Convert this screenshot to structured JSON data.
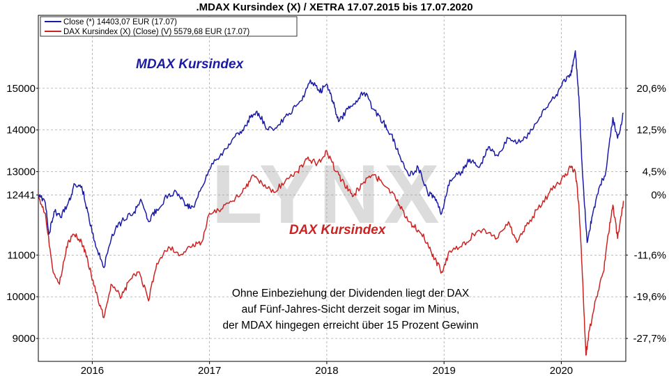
{
  "chart_data": {
    "type": "line",
    "title": ".MDAX Kursindex (X) / XETRA 17.07.2015 bis 17.07.2020",
    "legend": [
      {
        "label": "Close (*) 14403,07 EUR (17.07)",
        "color": "#1a1aa6"
      },
      {
        "label": "DAX Kursindex (X) (Close) (V) 5579,68 EUR (17.07)",
        "color": "#cc2222"
      }
    ],
    "legend_position": "top-left",
    "series_labels": {
      "mdax": "MDAX Kursindex",
      "dax": "DAX Kursindex"
    },
    "x_ticks": [
      "2016",
      "2017",
      "2018",
      "2019",
      "2020"
    ],
    "x_tick_values": [
      2016.0,
      2017.0,
      2018.0,
      2019.0,
      2020.0
    ],
    "xlim": [
      2015.54,
      2020.55
    ],
    "y_left_ticks": [
      {
        "label": "15000",
        "value": 15000
      },
      {
        "label": "14000",
        "value": 14000
      },
      {
        "label": "13000",
        "value": 13000
      },
      {
        "label": "12441",
        "value": 12441
      },
      {
        "label": "11000",
        "value": 11000
      },
      {
        "label": "10000",
        "value": 10000
      },
      {
        "label": "9000",
        "value": 9000
      }
    ],
    "y_right_ticks": [
      {
        "label": "20,6%",
        "value": 15000
      },
      {
        "label": "12,5%",
        "value": 14000
      },
      {
        "label": "4,5%",
        "value": 13000
      },
      {
        "label": "0%",
        "value": 12441
      },
      {
        "label": "-11,6%",
        "value": 11000
      },
      {
        "label": "-19,6%",
        "value": 10000
      },
      {
        "label": "-27,7%",
        "value": 9000
      }
    ],
    "ylim": [
      8450,
      16750
    ],
    "annotation": [
      "Ohne Einbeziehung der Dividenden liegt der DAX",
      "auf Fünf-Jahres-Sicht derzeit sogar im Minus,",
      "der MDAX hingegen erreicht über 15 Prozent Gewinn"
    ],
    "watermark": "LYNX",
    "series": [
      {
        "name": "MDAX",
        "color": "#1a1aa6",
        "points": [
          [
            2015.54,
            12441
          ],
          [
            2015.6,
            12250
          ],
          [
            2015.63,
            11500
          ],
          [
            2015.68,
            12050
          ],
          [
            2015.73,
            11900
          ],
          [
            2015.8,
            12300
          ],
          [
            2015.85,
            12700
          ],
          [
            2015.91,
            12650
          ],
          [
            2015.96,
            12050
          ],
          [
            2016.03,
            11200
          ],
          [
            2016.1,
            10700
          ],
          [
            2016.17,
            11500
          ],
          [
            2016.25,
            11800
          ],
          [
            2016.35,
            12000
          ],
          [
            2016.42,
            12300
          ],
          [
            2016.48,
            11800
          ],
          [
            2016.55,
            12100
          ],
          [
            2016.65,
            12450
          ],
          [
            2016.72,
            12500
          ],
          [
            2016.8,
            12200
          ],
          [
            2016.86,
            12150
          ],
          [
            2016.95,
            12700
          ],
          [
            2017.02,
            13200
          ],
          [
            2017.12,
            13500
          ],
          [
            2017.2,
            13800
          ],
          [
            2017.28,
            14000
          ],
          [
            2017.35,
            14300
          ],
          [
            2017.42,
            14400
          ],
          [
            2017.5,
            14000
          ],
          [
            2017.58,
            14100
          ],
          [
            2017.68,
            14400
          ],
          [
            2017.78,
            14700
          ],
          [
            2017.86,
            15200
          ],
          [
            2017.94,
            14900
          ],
          [
            2018.0,
            15100
          ],
          [
            2018.05,
            14700
          ],
          [
            2018.1,
            14200
          ],
          [
            2018.18,
            14500
          ],
          [
            2018.25,
            14700
          ],
          [
            2018.32,
            14900
          ],
          [
            2018.4,
            14500
          ],
          [
            2018.48,
            14200
          ],
          [
            2018.55,
            13900
          ],
          [
            2018.62,
            13400
          ],
          [
            2018.7,
            12900
          ],
          [
            2018.78,
            13100
          ],
          [
            2018.86,
            12500
          ],
          [
            2018.92,
            12400
          ],
          [
            2018.98,
            12000
          ],
          [
            2019.05,
            12800
          ],
          [
            2019.15,
            13000
          ],
          [
            2019.22,
            13300
          ],
          [
            2019.3,
            13100
          ],
          [
            2019.38,
            13600
          ],
          [
            2019.45,
            13400
          ],
          [
            2019.55,
            13800
          ],
          [
            2019.65,
            13700
          ],
          [
            2019.75,
            14000
          ],
          [
            2019.85,
            14500
          ],
          [
            2019.95,
            14800
          ],
          [
            2020.02,
            15200
          ],
          [
            2020.08,
            15300
          ],
          [
            2020.12,
            15900
          ],
          [
            2020.15,
            14800
          ],
          [
            2020.18,
            13000
          ],
          [
            2020.22,
            11300
          ],
          [
            2020.26,
            11900
          ],
          [
            2020.32,
            12600
          ],
          [
            2020.38,
            13000
          ],
          [
            2020.44,
            14300
          ],
          [
            2020.48,
            13800
          ],
          [
            2020.53,
            14403
          ]
        ]
      },
      {
        "name": "DAX",
        "color": "#cc2222",
        "points": [
          [
            2015.54,
            12441
          ],
          [
            2015.6,
            12000
          ],
          [
            2015.66,
            10700
          ],
          [
            2015.72,
            10300
          ],
          [
            2015.78,
            11200
          ],
          [
            2015.84,
            11500
          ],
          [
            2015.91,
            11300
          ],
          [
            2015.96,
            10900
          ],
          [
            2016.03,
            10100
          ],
          [
            2016.1,
            9500
          ],
          [
            2016.16,
            10300
          ],
          [
            2016.25,
            10000
          ],
          [
            2016.32,
            10400
          ],
          [
            2016.4,
            10600
          ],
          [
            2016.48,
            9900
          ],
          [
            2016.55,
            10800
          ],
          [
            2016.65,
            11200
          ],
          [
            2016.75,
            11000
          ],
          [
            2016.85,
            11200
          ],
          [
            2016.93,
            11300
          ],
          [
            2017.0,
            12000
          ],
          [
            2017.1,
            12100
          ],
          [
            2017.2,
            12300
          ],
          [
            2017.3,
            12600
          ],
          [
            2017.38,
            12900
          ],
          [
            2017.45,
            12700
          ],
          [
            2017.55,
            12500
          ],
          [
            2017.65,
            12800
          ],
          [
            2017.75,
            13000
          ],
          [
            2017.83,
            13300
          ],
          [
            2017.92,
            13200
          ],
          [
            2018.0,
            13500
          ],
          [
            2018.08,
            13000
          ],
          [
            2018.15,
            12700
          ],
          [
            2018.22,
            12400
          ],
          [
            2018.3,
            12700
          ],
          [
            2018.38,
            12900
          ],
          [
            2018.46,
            12800
          ],
          [
            2018.55,
            12500
          ],
          [
            2018.62,
            12200
          ],
          [
            2018.7,
            11800
          ],
          [
            2018.78,
            11600
          ],
          [
            2018.86,
            11300
          ],
          [
            2018.92,
            10900
          ],
          [
            2018.98,
            10600
          ],
          [
            2019.05,
            11100
          ],
          [
            2019.15,
            11200
          ],
          [
            2019.25,
            11500
          ],
          [
            2019.35,
            11600
          ],
          [
            2019.45,
            11400
          ],
          [
            2019.55,
            11800
          ],
          [
            2019.62,
            11300
          ],
          [
            2019.7,
            11700
          ],
          [
            2019.8,
            12100
          ],
          [
            2019.9,
            12500
          ],
          [
            2020.0,
            12800
          ],
          [
            2020.08,
            13100
          ],
          [
            2020.12,
            13000
          ],
          [
            2020.15,
            12200
          ],
          [
            2020.18,
            10500
          ],
          [
            2020.21,
            8600
          ],
          [
            2020.24,
            9200
          ],
          [
            2020.3,
            10000
          ],
          [
            2020.36,
            10600
          ],
          [
            2020.4,
            11500
          ],
          [
            2020.44,
            12200
          ],
          [
            2020.48,
            11400
          ],
          [
            2020.53,
            12300
          ]
        ]
      }
    ]
  }
}
